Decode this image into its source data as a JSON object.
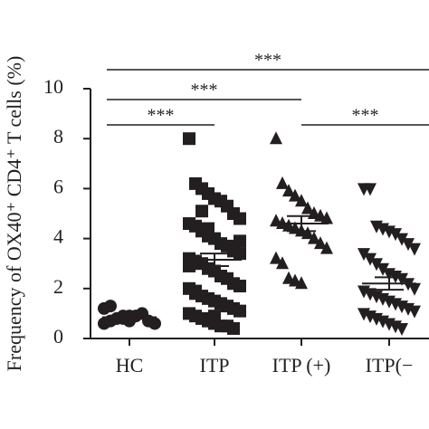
{
  "chart_data": {
    "type": "scatter",
    "ylabel": "Frequency of OX40⁺ CD4⁺ T cells (%)",
    "categories": [
      "HC",
      "ITP",
      "ITP (+)",
      "ITP(−"
    ],
    "ylim": [
      0,
      10
    ],
    "yticks": [
      0,
      2,
      4,
      6,
      8,
      10
    ],
    "series": [
      {
        "marker": "circle",
        "color": "#231f20",
        "mean": 0.85,
        "sem": 0.05,
        "values": [
          0.6,
          0.7,
          0.8,
          0.8,
          0.9,
          0.9,
          1.0,
          0.7,
          0.6,
          1.2,
          1.3,
          0.8,
          0.9,
          0.7
        ]
      },
      {
        "marker": "square",
        "color": "#231f20",
        "mean": 3.15,
        "sem": 0.25,
        "values": [
          8.0,
          6.2,
          6.0,
          5.8,
          5.6,
          5.5,
          5.3,
          5.0,
          4.8,
          4.6,
          4.5,
          4.3,
          4.1,
          4.0,
          3.8,
          3.7,
          3.5,
          3.4,
          3.2,
          3.1,
          3.0,
          2.8,
          2.7,
          2.5,
          2.4,
          2.2,
          2.1,
          2.0,
          1.9,
          1.7,
          1.6,
          1.5,
          1.4,
          1.3,
          1.2,
          1.1,
          1.0,
          0.9,
          0.8,
          0.7,
          0.6,
          0.5,
          0.5,
          0.4,
          3.9,
          2.9,
          1.8,
          5.1,
          4.4,
          0.9
        ]
      },
      {
        "marker": "triangle-up",
        "color": "#231f20",
        "mean": 4.6,
        "sem": 0.3,
        "values": [
          8.0,
          6.2,
          5.9,
          5.7,
          5.5,
          5.2,
          5.0,
          4.9,
          4.8,
          4.7,
          4.6,
          4.5,
          4.4,
          4.3,
          4.2,
          4.0,
          3.8,
          3.6,
          3.2,
          3.0,
          2.4,
          2.3,
          2.2
        ]
      },
      {
        "marker": "triangle-down",
        "color": "#231f20",
        "mean": 2.2,
        "sem": 0.25,
        "values": [
          6.0,
          6.0,
          4.5,
          4.4,
          4.3,
          4.2,
          4.0,
          3.8,
          3.6,
          3.4,
          3.2,
          3.0,
          2.8,
          2.6,
          2.5,
          2.4,
          2.2,
          2.0,
          1.9,
          1.8,
          1.7,
          1.6,
          1.5,
          1.4,
          1.3,
          1.2,
          1.1,
          1.0,
          0.9,
          0.8,
          0.7,
          0.6,
          0.5,
          0.4
        ]
      }
    ],
    "brackets": [
      {
        "groups": [
          0,
          1
        ],
        "label": "***"
      },
      {
        "groups": [
          2,
          3
        ],
        "label": "***"
      },
      {
        "groups": [
          0,
          2
        ],
        "label": "***"
      },
      {
        "groups": [
          0,
          3
        ],
        "label": "***"
      }
    ]
  }
}
